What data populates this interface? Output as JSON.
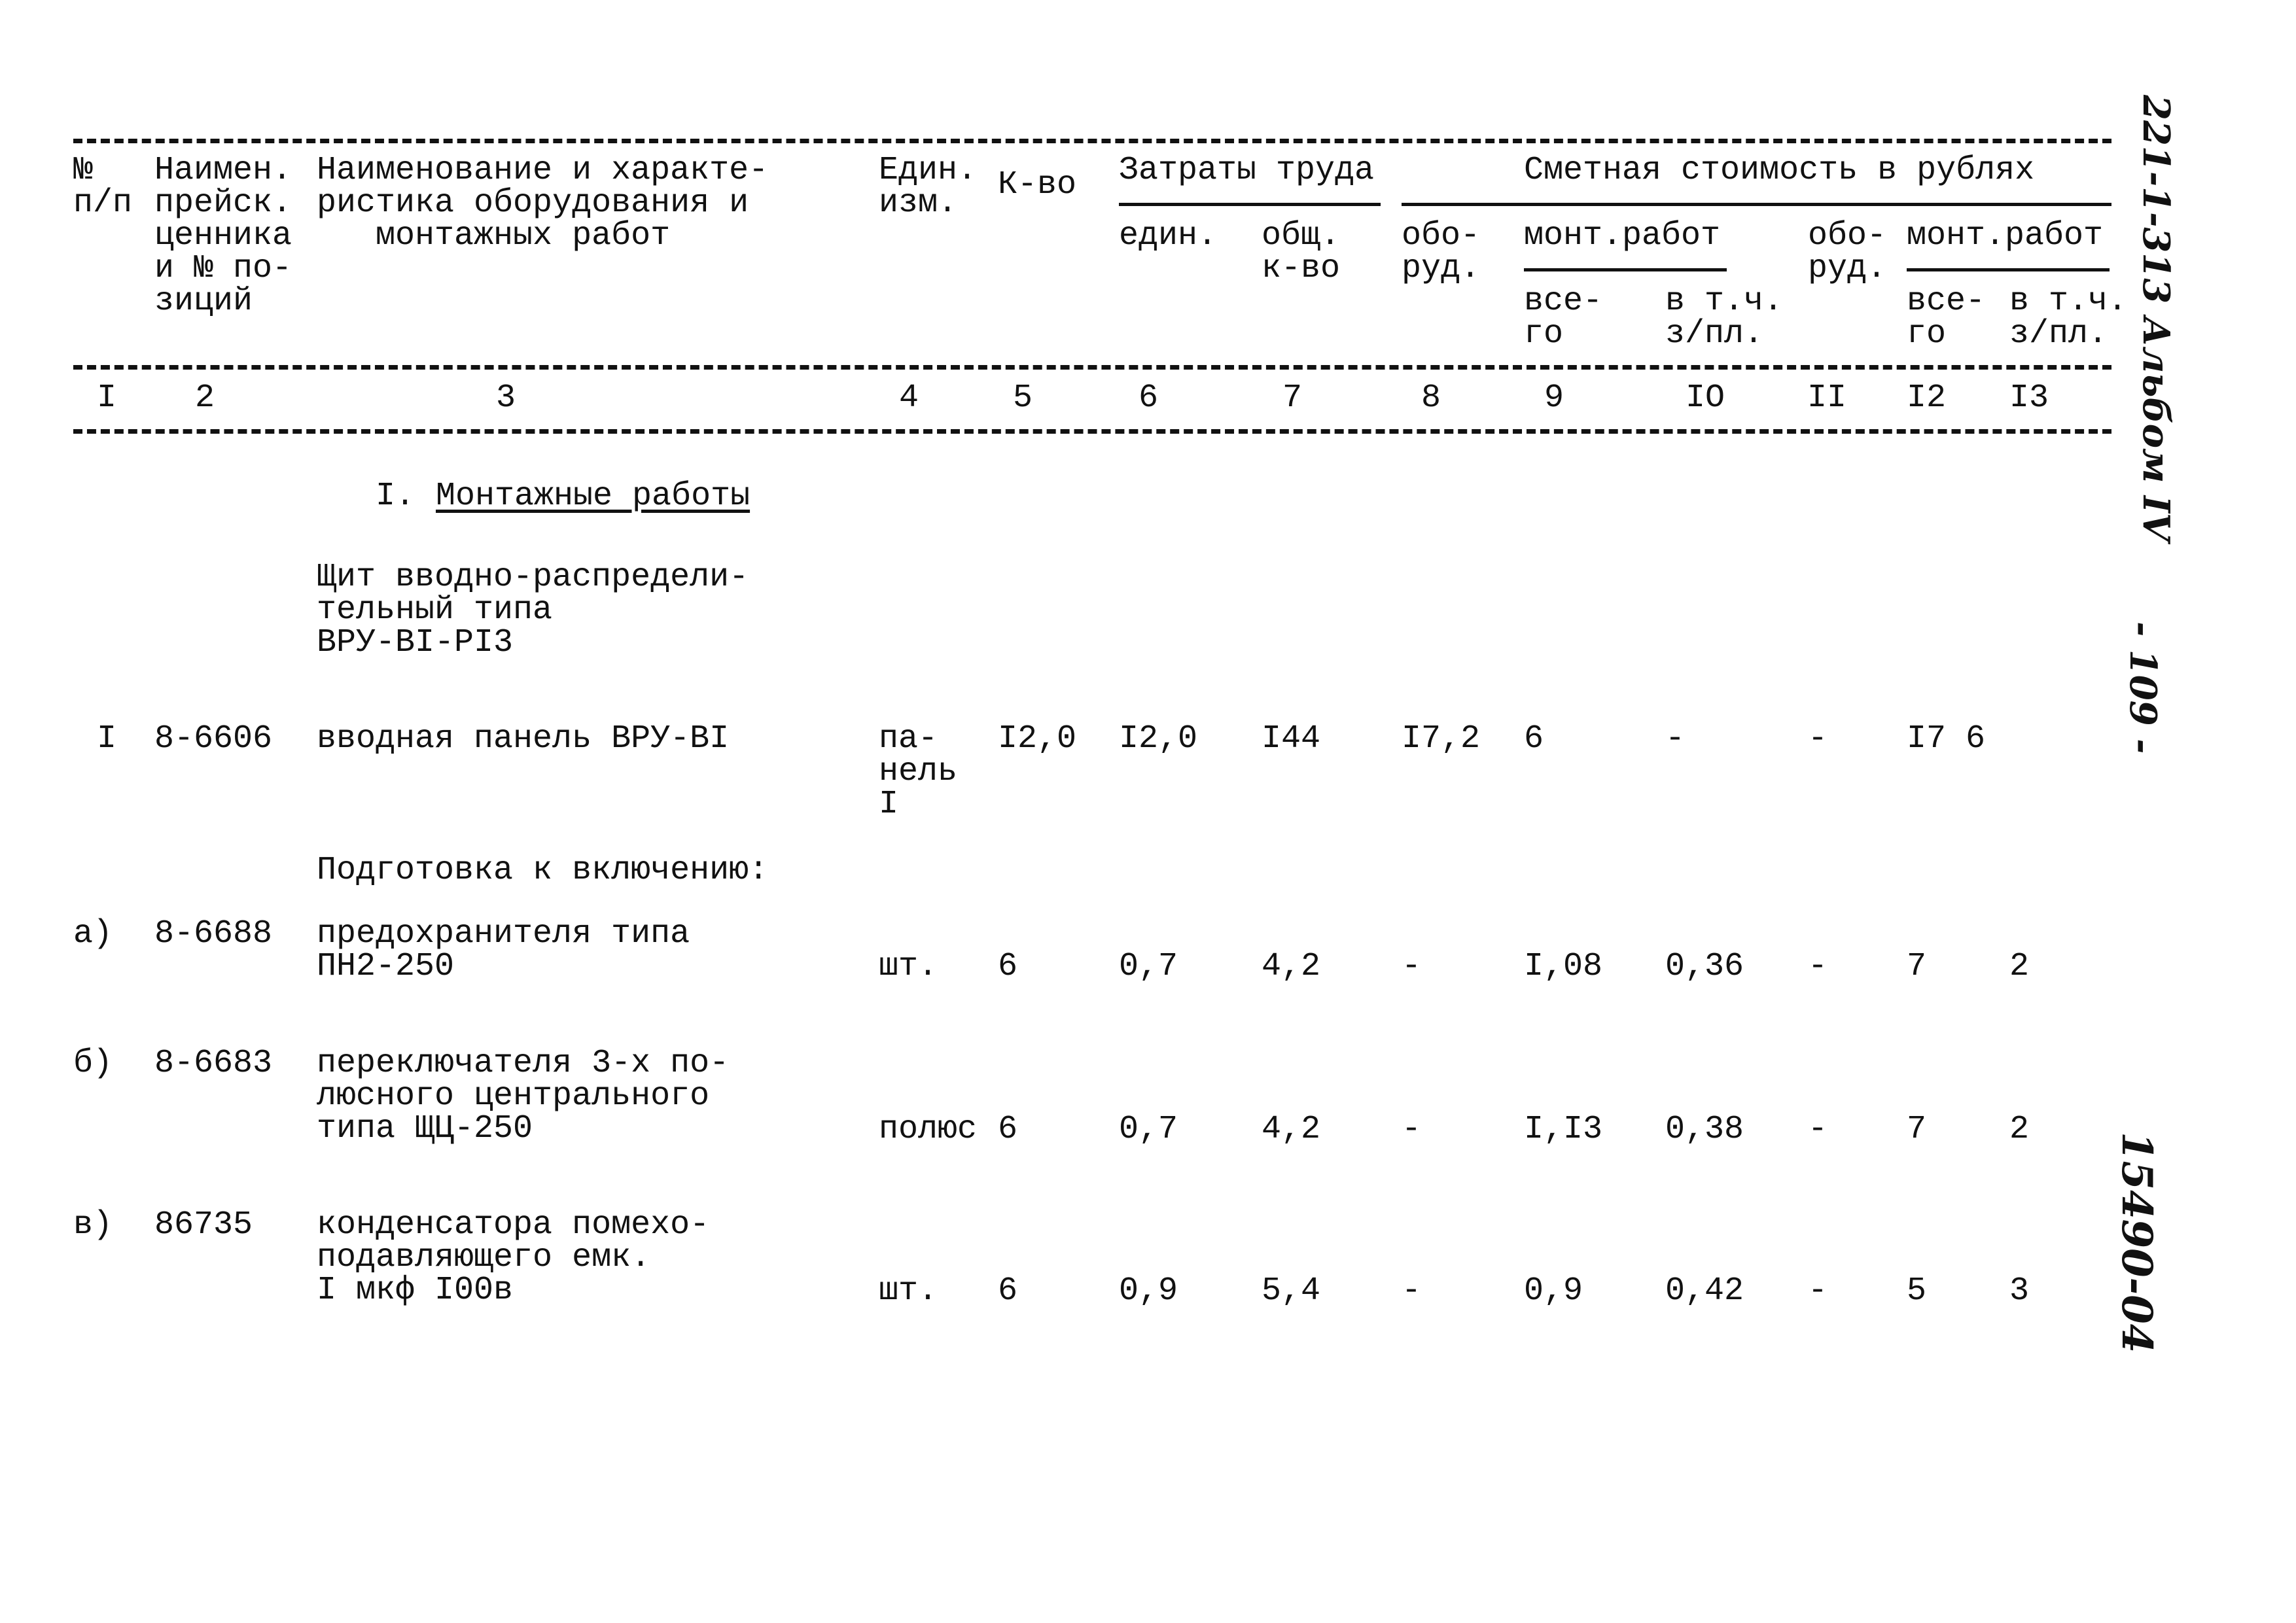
{
  "header": {
    "c1": "№\nп/п",
    "c2": "Наимен.\nпрейск.\nценника\nи № по-\nзиций",
    "c3": "Наименование и характе-\nристика оборудования и\n   монтажных работ",
    "c4": "Един.\nизм.",
    "c5": "К-во",
    "labor_group": "Затраты труда",
    "c6": "един.",
    "c7": "общ.\nк-во",
    "cost_group": "Сметная стоимость в рублях",
    "c8": "обо-\nруд.",
    "c9_10_group": "монт.работ",
    "c9": "все-\nго",
    "c10": "в т.ч.\nз/пл.",
    "c11": "обо-\nруд.",
    "c12_13_group": "монт.работ",
    "c12": "все-\nго",
    "c13": "в т.ч.\nз/пл."
  },
  "column_numbers": [
    "I",
    "2",
    "3",
    "4",
    "5",
    "6",
    "7",
    "8",
    "9",
    "IO",
    "II",
    "I2",
    "I3"
  ],
  "section_title_num": "I.",
  "section_title": "Монтажные работы",
  "group_title": "Щит вводно-распредели-\nтельный типа\nВРУ-BI-PI3",
  "subgroup_title": "Подготовка к включению:",
  "rows": [
    {
      "num": "I",
      "code": "8-6606",
      "name": "вводная панель ВРУ-BI",
      "unit": "па-\nнель\nI",
      "qty": "I2,0",
      "labor_unit": "I2,0",
      "labor_total": "I44",
      "equip": "I7,2",
      "mont_total": "6",
      "mont_wage": "-",
      "equip2": "-",
      "mont_total2": "I7 6",
      "mont_wage2": ""
    },
    {
      "num": "а)",
      "code": "8-6688",
      "name": "предохранителя типа\nПН2-250",
      "unit": "шт.",
      "qty": "6",
      "labor_unit": "0,7",
      "labor_total": "4,2",
      "equip": "-",
      "mont_total": "I,08",
      "mont_wage": "0,36",
      "equip2": "-",
      "mont_total2": "7",
      "mont_wage2": "2"
    },
    {
      "num": "б)",
      "code": "8-6683",
      "name": "переключателя 3-х по-\nлюсного центрального\nтипа ЩЦ-250",
      "unit": "полюс",
      "qty": "6",
      "labor_unit": "0,7",
      "labor_total": "4,2",
      "equip": "-",
      "mont_total": "I,I3",
      "mont_wage": "0,38",
      "equip2": "-",
      "mont_total2": "7",
      "mont_wage2": "2"
    },
    {
      "num": "в)",
      "code": "86735",
      "name": "конденсатора помехо-\nподавляющего емк.\nI мкф I00в",
      "unit": "шт.",
      "qty": "6",
      "labor_unit": "0,9",
      "labor_total": "5,4",
      "equip": "-",
      "mont_total": "0,9",
      "mont_wage": "0,42",
      "equip2": "-",
      "mont_total2": "5",
      "mont_wage2": "3"
    }
  ],
  "margin_notes": {
    "album": "221-1-313 Альбом IV",
    "page": "- 109 -",
    "inventory": "15490-04"
  }
}
